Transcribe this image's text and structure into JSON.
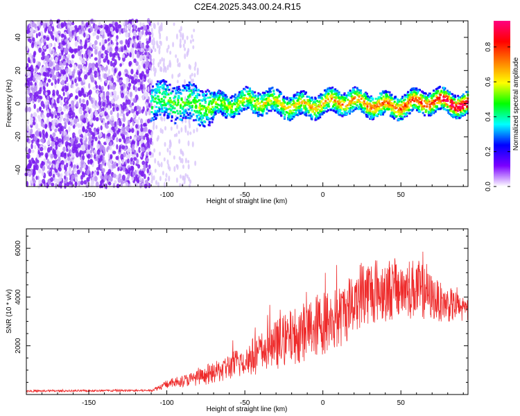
{
  "title": "C2E4.2025.343.00.24.R15",
  "chart_data": [
    {
      "type": "heatmap",
      "name": "spectrogram",
      "xlabel": "Height of straight line (km)",
      "ylabel": "Frequency (Hz)",
      "xlim": [
        -190,
        93
      ],
      "ylim": [
        -50,
        50
      ],
      "xticks": [
        -150,
        -100,
        -50,
        0,
        50
      ],
      "yticks": [
        -40,
        -20,
        0,
        20,
        40
      ],
      "colorbar": {
        "label": "Normalized spectral amplitude",
        "range": [
          0,
          0.95
        ],
        "ticks": [
          0.0,
          0.2,
          0.4,
          0.6,
          0.8
        ],
        "colormap": [
          "#ffffff",
          "#7b00ff",
          "#0000ff",
          "#00ffff",
          "#00ff00",
          "#ffff00",
          "#ff8000",
          "#ff0000",
          "#ff0080"
        ]
      },
      "regions": [
        {
          "description": "broadband noise",
          "x_range": [
            -190,
            -110
          ],
          "freq_range": [
            -50,
            50
          ],
          "amplitude": 0.1
        },
        {
          "description": "signal band",
          "x_range": [
            -110,
            93
          ],
          "center_freq": 0,
          "half_width_hz": 7,
          "amplitude_peak": 0.95
        }
      ]
    },
    {
      "type": "line",
      "name": "snr",
      "color": "#ee2a2a",
      "xlabel": "Height of straight line (km)",
      "ylabel": "SNR (10 * v/v)",
      "xlim": [
        -190,
        93
      ],
      "ylim": [
        0,
        6800
      ],
      "xticks": [
        -150,
        -100,
        -50,
        0,
        50
      ],
      "yticks": [
        2000,
        4000,
        6000
      ],
      "trend": [
        {
          "x": -190,
          "base": 100,
          "spread": 80
        },
        {
          "x": -110,
          "base": 120,
          "spread": 90
        },
        {
          "x": -100,
          "base": 250,
          "spread": 350
        },
        {
          "x": -75,
          "base": 400,
          "spread": 700
        },
        {
          "x": -50,
          "base": 700,
          "spread": 1400
        },
        {
          "x": -25,
          "base": 1100,
          "spread": 2200
        },
        {
          "x": 0,
          "base": 1600,
          "spread": 2700
        },
        {
          "x": 10,
          "base": 1800,
          "spread": 2600
        },
        {
          "x": 25,
          "base": 2800,
          "spread": 2800
        },
        {
          "x": 40,
          "base": 3000,
          "spread": 2600
        },
        {
          "x": 60,
          "base": 3100,
          "spread": 2500
        },
        {
          "x": 75,
          "base": 3000,
          "spread": 1600
        },
        {
          "x": 93,
          "base": 2900,
          "spread": 1100
        }
      ]
    }
  ]
}
